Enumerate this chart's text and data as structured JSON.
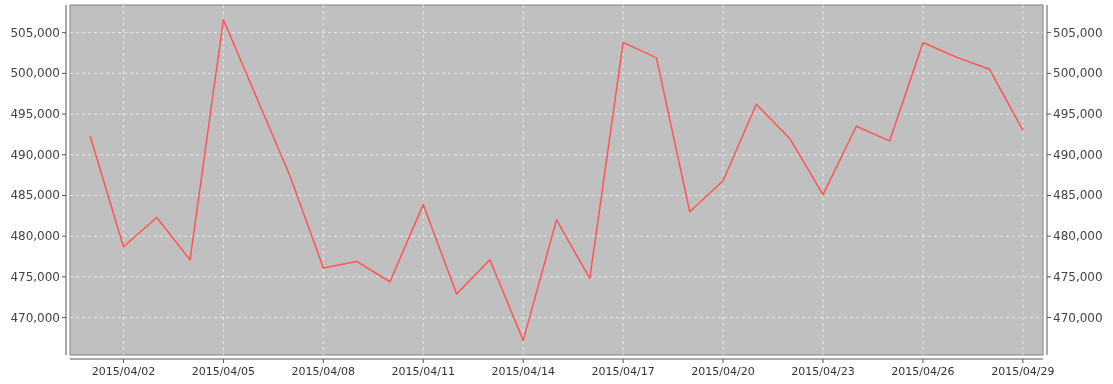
{
  "chart_data": {
    "type": "line",
    "x": [
      "2015-04-01",
      "2015-04-02",
      "2015-04-03",
      "2015-04-04",
      "2015-04-05",
      "2015-04-06",
      "2015-04-07",
      "2015-04-08",
      "2015-04-09",
      "2015-04-10",
      "2015-04-11",
      "2015-04-12",
      "2015-04-13",
      "2015-04-14",
      "2015-04-15",
      "2015-04-16",
      "2015-04-17",
      "2015-04-18",
      "2015-04-19",
      "2015-04-20",
      "2015-04-21",
      "2015-04-22",
      "2015-04-23",
      "2015-04-24",
      "2015-04-25",
      "2015-04-26",
      "2015-04-27",
      "2015-04-28",
      "2015-04-29"
    ],
    "series": [
      {
        "color": "#ff5555",
        "values": [
          492300,
          478700,
          482300,
          477100,
          506600,
          497000,
          487400,
          476100,
          476900,
          474400,
          483900,
          472900,
          477100,
          467200,
          482000,
          474800,
          503800,
          501900,
          483000,
          486800,
          496200,
          492000,
          485100,
          493500,
          491700,
          503800,
          502000,
          500500,
          493000
        ]
      }
    ],
    "xlim": [
      "2015-03-31T09:30",
      "2015-04-29T14:30"
    ],
    "xticks": [
      {
        "value": "2015-04-02",
        "label": "2015/04/02"
      },
      {
        "value": "2015-04-05",
        "label": "2015/04/05"
      },
      {
        "value": "2015-04-08",
        "label": "2015/04/08"
      },
      {
        "value": "2015-04-11",
        "label": "2015/04/11"
      },
      {
        "value": "2015-04-14",
        "label": "2015/04/14"
      },
      {
        "value": "2015-04-17",
        "label": "2015/04/17"
      },
      {
        "value": "2015-04-20",
        "label": "2015/04/20"
      },
      {
        "value": "2015-04-23",
        "label": "2015/04/23"
      },
      {
        "value": "2015-04-26",
        "label": "2015/04/26"
      },
      {
        "value": "2015-04-29",
        "label": "2015/04/29"
      }
    ],
    "ylim": [
      465400,
      508400
    ],
    "yticks": [
      {
        "value": 470000,
        "label": "470,000"
      },
      {
        "value": 475000,
        "label": "475,000"
      },
      {
        "value": 480000,
        "label": "480,000"
      },
      {
        "value": 485000,
        "label": "485,000"
      },
      {
        "value": 490000,
        "label": "490,000"
      },
      {
        "value": 495000,
        "label": "495,000"
      },
      {
        "value": 500000,
        "label": "500,000"
      },
      {
        "value": 505000,
        "label": "505,000"
      }
    ],
    "y2lim": [
      465400,
      508400
    ],
    "y2ticks": [
      {
        "value": 470000,
        "label": "470,000"
      },
      {
        "value": 475000,
        "label": "475,000"
      },
      {
        "value": 480000,
        "label": "480,000"
      },
      {
        "value": 485000,
        "label": "485,000"
      },
      {
        "value": 490000,
        "label": "490,000"
      },
      {
        "value": 495000,
        "label": "495,000"
      },
      {
        "value": 500000,
        "label": "500,000"
      },
      {
        "value": 505000,
        "label": "505,000"
      }
    ],
    "grid": true,
    "marker": "none",
    "line_style": "solid"
  }
}
